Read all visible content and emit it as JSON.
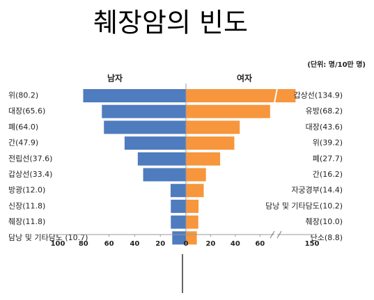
{
  "chart_data": {
    "type": "butterfly",
    "title": "췌장암의 빈도",
    "unit": "(단위: 명/10만 명)",
    "left": {
      "name": "남자",
      "color": "#4f7bbf",
      "labels": [
        "위(80.2)",
        "대장(65.6)",
        "폐(64.0)",
        "간(47.9)",
        "전립선(37.6)",
        "갑상선(33.4)",
        "방광(12.0)",
        "신장(11.8)",
        "췌장(11.8)",
        "담낭 및 기타담도 (10.7)"
      ],
      "values": [
        80.2,
        65.6,
        64.0,
        47.9,
        37.6,
        33.4,
        12.0,
        11.8,
        11.8,
        10.7
      ],
      "xlim": [
        0,
        100
      ],
      "xticks": [
        100,
        80,
        60,
        40,
        20,
        0
      ]
    },
    "right": {
      "name": "여자",
      "color": "#f7963c",
      "labels": [
        "갑상선(134.9)",
        "유방(68.2)",
        "대장(43.6)",
        "위(39.2)",
        "폐(27.7)",
        "간(16.2)",
        "자궁경부(14.4)",
        "담낭 및 기타담도(10.2)",
        "췌장(10.0)",
        "난소(8.8)"
      ],
      "values": [
        134.9,
        68.2,
        43.6,
        39.2,
        27.7,
        16.2,
        14.4,
        10.2,
        10.0,
        8.8
      ],
      "xlim": [
        0,
        150
      ],
      "xticks": [
        20,
        40,
        60,
        150
      ],
      "xbreak": [
        70,
        120
      ]
    }
  }
}
